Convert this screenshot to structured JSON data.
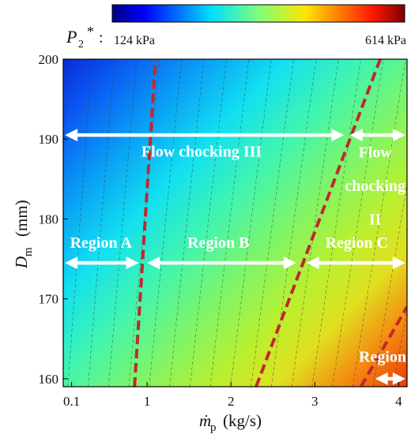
{
  "chart_data": {
    "type": "heatmap",
    "xlabel": "ṁ",
    "xlabel_sub": "p",
    "xlabel_unit": "(kg/s)",
    "ylabel": "D",
    "ylabel_sub": "m",
    "ylabel_unit": "(mm)",
    "xlim": [
      0,
      4.1
    ],
    "ylim": [
      159,
      200
    ],
    "xticks": [
      {
        "value": 0.1,
        "label": "0.1"
      },
      {
        "value": 1,
        "label": "1"
      },
      {
        "value": 2,
        "label": "2"
      },
      {
        "value": 3,
        "label": "3"
      },
      {
        "value": 4,
        "label": "4"
      }
    ],
    "yticks": [
      {
        "value": 160,
        "label": "160"
      },
      {
        "value": 170,
        "label": "170"
      },
      {
        "value": 180,
        "label": "180"
      },
      {
        "value": 190,
        "label": "190"
      },
      {
        "value": 200,
        "label": "200"
      }
    ],
    "colorbar": {
      "symbol": "P",
      "symbol_sub": "2",
      "symbol_sup": "*",
      "separator": ":",
      "min_label": "124 kPa",
      "max_label": "614 kPa",
      "min": 124,
      "max": 614,
      "colormap": "jet"
    },
    "field": {
      "description_values": [
        {
          "x": 0.1,
          "y": 200,
          "P": 124
        },
        {
          "x": 4.0,
          "y": 160,
          "P": 614
        }
      ],
      "contour_count": 20
    },
    "boundary_lines": [
      {
        "from": {
          "x": 0.85,
          "y": 159
        },
        "to": {
          "x": 1.1,
          "y": 200
        },
        "color": "#c0282d"
      },
      {
        "from": {
          "x": 2.3,
          "y": 159
        },
        "to": {
          "x": 3.78,
          "y": 200
        },
        "color": "#c0282d"
      },
      {
        "from": {
          "x": 3.55,
          "y": 159
        },
        "to": {
          "x": 4.1,
          "y": 169
        },
        "color": "#c0282d"
      }
    ],
    "annotations": [
      {
        "label": "Flow chocking III",
        "arrow_from_x": 0.02,
        "arrow_to_x": 3.35,
        "arrow_y": 190.5,
        "text_x": 1.65,
        "text_y": 187.8
      },
      {
        "label": "Flow",
        "text_x": 3.72,
        "text_y": 187.7
      },
      {
        "label": "chocking",
        "text_x": 3.72,
        "text_y": 183.5
      },
      {
        "label": "II",
        "text_x": 3.72,
        "text_y": 179.3
      },
      {
        "label": "Region A",
        "arrow_from_x": 0.02,
        "arrow_to_x": 0.9,
        "arrow_y": 174.5,
        "text_x": 0.45,
        "text_y": 176.4
      },
      {
        "label": "Region B",
        "arrow_from_x": 1.0,
        "arrow_to_x": 2.78,
        "arrow_y": 174.5,
        "text_x": 1.85,
        "text_y": 176.4
      },
      {
        "label": "Region C",
        "arrow_from_x": 2.9,
        "arrow_to_x": 4.08,
        "arrow_y": 174.5,
        "text_x": 3.5,
        "text_y": 176.4
      },
      {
        "label": "Region D",
        "arrow_from_x": 3.72,
        "arrow_to_x": 4.08,
        "arrow_y": 160.0,
        "text_x": 3.9,
        "text_y": 162.1
      }
    ],
    "arrow_right_ext": [
      {
        "arrow_from_x": 3.42,
        "arrow_to_x": 4.08,
        "arrow_y": 190.5
      }
    ],
    "grid": false,
    "legend": "none"
  }
}
